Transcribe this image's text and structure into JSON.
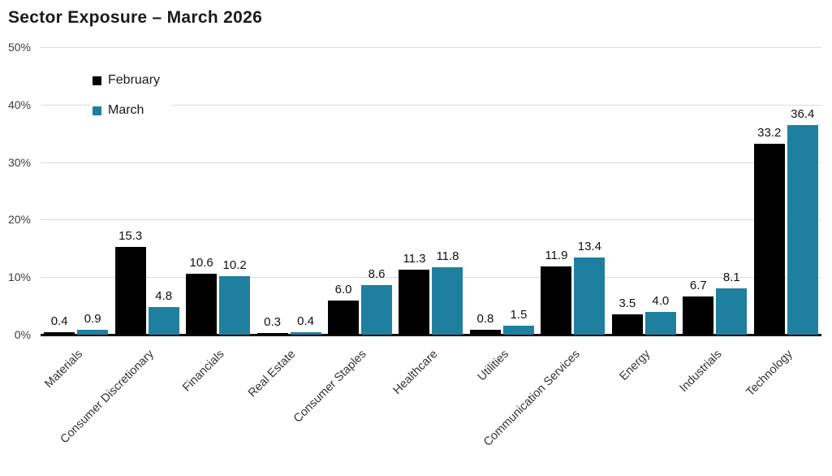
{
  "title": "Sector Exposure – March 2026",
  "colors": {
    "february": "#000000",
    "march": "#1f7f9e",
    "gridline": "#dcdcdc",
    "baseline": "#111111",
    "title_text": "#1a1a1a",
    "axis_text": "#3d3d3d"
  },
  "legend": {
    "items": [
      {
        "label": "February",
        "color": "#000000"
      },
      {
        "label": "March",
        "color": "#1f7f9e"
      }
    ]
  },
  "chart_data": {
    "type": "bar",
    "title": "Sector Exposure – March 2026",
    "categories": [
      "Materials",
      "Consumer Discretionary",
      "Financials",
      "Real Estate",
      "Consumer Staples",
      "Healthcare",
      "Utilities",
      "Communication Services",
      "Energy",
      "Industrials",
      "Technology"
    ],
    "series": [
      {
        "name": "February",
        "color": "#000000",
        "values": [
          0.4,
          15.3,
          10.6,
          0.3,
          6.0,
          11.3,
          0.8,
          11.9,
          3.5,
          6.7,
          33.2
        ]
      },
      {
        "name": "March",
        "color": "#1f7f9e",
        "values": [
          0.9,
          4.8,
          10.2,
          0.4,
          8.6,
          11.8,
          1.5,
          13.4,
          4.0,
          8.1,
          36.4
        ]
      }
    ],
    "value_labels": true,
    "value_label_decimals": 1,
    "xlabel": "",
    "ylabel": "",
    "ylim": [
      0,
      50
    ],
    "ytick_step": 10,
    "yticks": [
      "0%",
      "10%",
      "20%",
      "30%",
      "40%",
      "50%"
    ],
    "grid": true,
    "legend_position": "inside-top-left"
  }
}
